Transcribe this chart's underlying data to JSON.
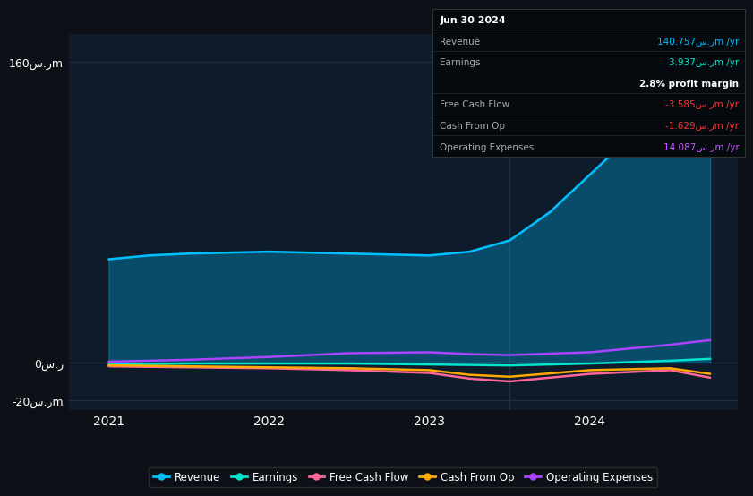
{
  "background_color": "#0d1117",
  "plot_bg_color": "#0d1b2a",
  "grid_color": "#253545",
  "title_box": {
    "date": "Jun 30 2024",
    "rows": [
      {
        "label": "Revenue",
        "value": "140.757س.رm /yr",
        "value_color": "#00bfff"
      },
      {
        "label": "Earnings",
        "value": "3.937س.رm /yr",
        "value_color": "#00e5cc"
      },
      {
        "label": "",
        "value": "2.8% profit margin",
        "value_color": "#ffffff"
      },
      {
        "label": "Free Cash Flow",
        "value": "-3.585س.رm /yr",
        "value_color": "#ff3333"
      },
      {
        "label": "Cash From Op",
        "value": "-1.629س.رm /yr",
        "value_color": "#ff3333"
      },
      {
        "label": "Operating Expenses",
        "value": "14.087س.رm /yr",
        "value_color": "#cc55ff"
      }
    ]
  },
  "ylabel_160": "160س.رm",
  "ylabel_0": "0س.ر",
  "ylabel_n20": "-20س.رm",
  "xticks": [
    2021,
    2022,
    2023,
    2024
  ],
  "ylim": [
    -25,
    175
  ],
  "xlim": [
    2020.75,
    2024.92
  ],
  "series": {
    "Revenue": {
      "color": "#00bfff",
      "fill": true,
      "fill_alpha": 0.3,
      "data_x": [
        2021.0,
        2021.25,
        2021.5,
        2022.0,
        2022.5,
        2023.0,
        2023.25,
        2023.5,
        2023.75,
        2024.0,
        2024.25,
        2024.5,
        2024.75
      ],
      "data_y": [
        55,
        57,
        58,
        59,
        58,
        57,
        59,
        65,
        80,
        100,
        120,
        138,
        155
      ]
    },
    "Earnings": {
      "color": "#00e5cc",
      "fill": false,
      "data_x": [
        2021.0,
        2021.5,
        2022.0,
        2022.5,
        2023.0,
        2023.5,
        2024.0,
        2024.5,
        2024.75
      ],
      "data_y": [
        -1.0,
        -0.5,
        -0.5,
        -0.5,
        -1.0,
        -1.5,
        -0.5,
        1.0,
        2.0
      ]
    },
    "Free Cash Flow": {
      "color": "#ff6699",
      "fill": false,
      "data_x": [
        2021.0,
        2021.5,
        2022.0,
        2022.5,
        2023.0,
        2023.25,
        2023.5,
        2024.0,
        2024.5,
        2024.75
      ],
      "data_y": [
        -2.0,
        -2.5,
        -3.0,
        -4.0,
        -5.5,
        -8.5,
        -10.0,
        -6.0,
        -4.0,
        -8.0
      ]
    },
    "Cash From Op": {
      "color": "#ffaa00",
      "fill": false,
      "data_x": [
        2021.0,
        2021.5,
        2022.0,
        2022.5,
        2023.0,
        2023.25,
        2023.5,
        2024.0,
        2024.5,
        2024.75
      ],
      "data_y": [
        -1.5,
        -2.0,
        -2.5,
        -3.0,
        -4.0,
        -6.5,
        -7.5,
        -4.0,
        -3.0,
        -6.0
      ]
    },
    "Operating Expenses": {
      "color": "#aa44ff",
      "fill": false,
      "data_x": [
        2021.0,
        2021.5,
        2022.0,
        2022.5,
        2023.0,
        2023.25,
        2023.5,
        2024.0,
        2024.25,
        2024.5,
        2024.75
      ],
      "data_y": [
        0.5,
        1.5,
        3.0,
        5.0,
        5.5,
        4.5,
        4.0,
        5.5,
        7.5,
        9.5,
        12.0
      ]
    }
  },
  "legend": [
    {
      "label": "Revenue",
      "color": "#00bfff"
    },
    {
      "label": "Earnings",
      "color": "#00e5cc"
    },
    {
      "label": "Free Cash Flow",
      "color": "#ff6699"
    },
    {
      "label": "Cash From Op",
      "color": "#ffaa00"
    },
    {
      "label": "Operating Expenses",
      "color": "#aa44ff"
    }
  ],
  "vline_x": 2023.5,
  "vline_color": "#2a3a4a"
}
